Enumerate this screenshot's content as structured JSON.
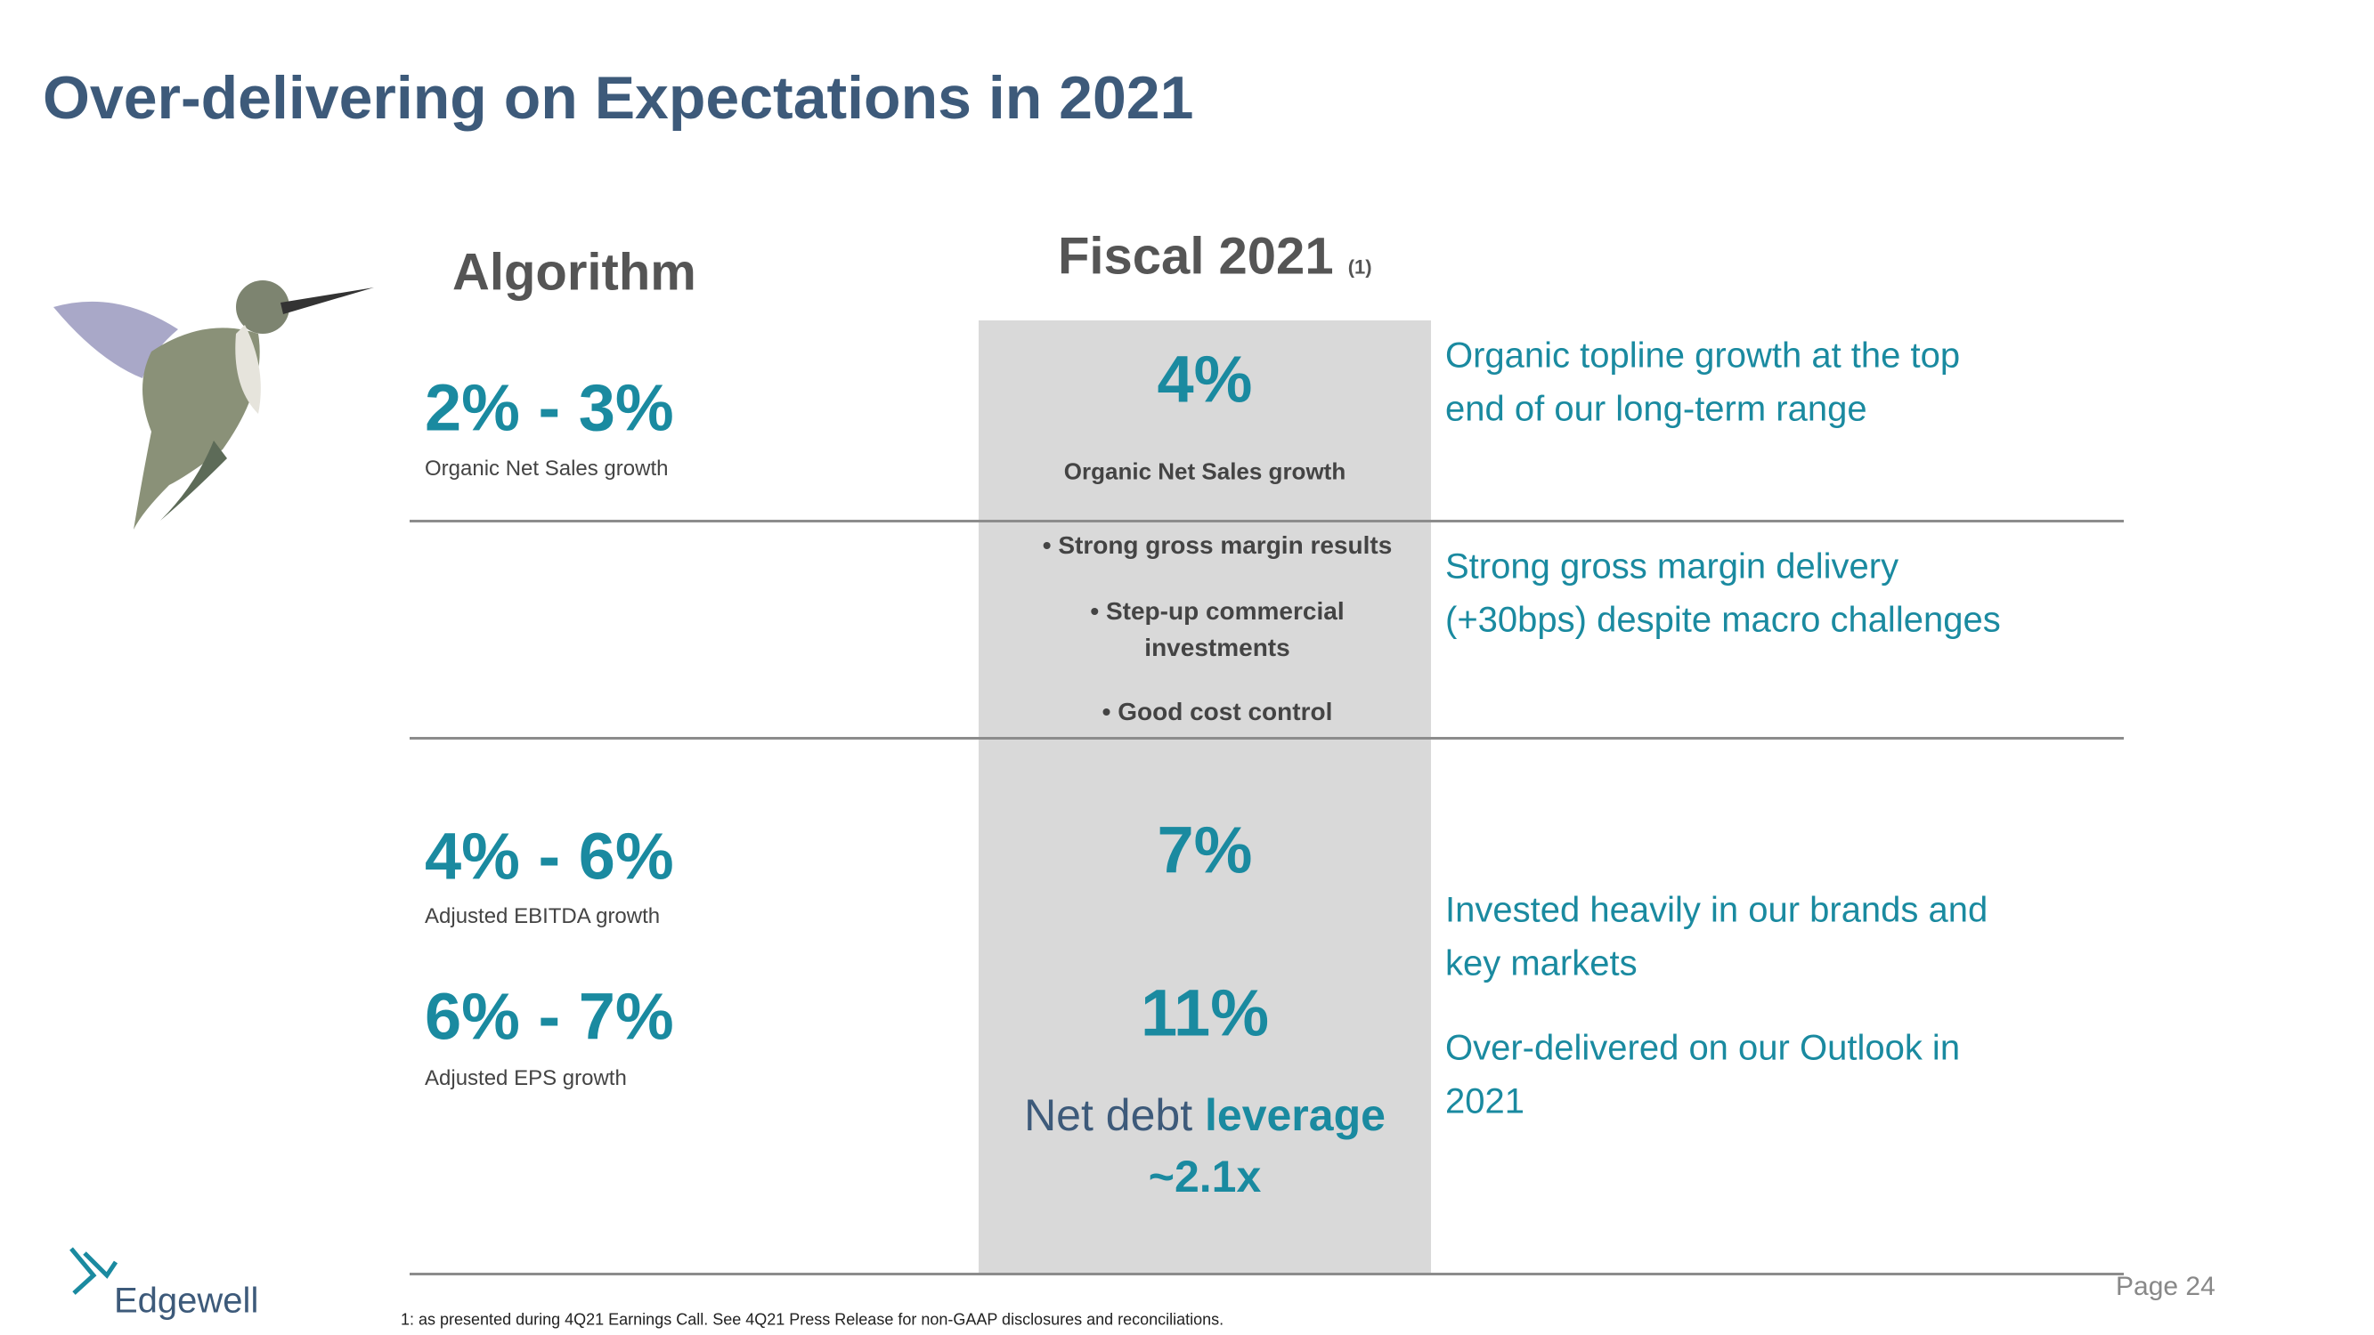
{
  "header": {
    "title": "Over-delivering on Expectations in 2021"
  },
  "columns": {
    "algorithm": "Algorithm",
    "fiscal": "Fiscal 2021",
    "fiscal_note": "(1)"
  },
  "rows": [
    {
      "algorithm": [
        {
          "value": "2% - 3%",
          "label": "Organic Net Sales growth"
        }
      ],
      "fiscal": {
        "value": "4%",
        "label": "Organic Net Sales growth"
      },
      "comment": [
        [
          "Organic topline growth at the top",
          "end of our long-term range"
        ]
      ]
    },
    {
      "fiscal_bullets": [
        [
          "Strong gross margin results"
        ],
        [
          "Step-up commercial",
          "investments"
        ],
        [
          "Good cost control"
        ]
      ],
      "comment": [
        [
          "Strong gross margin delivery",
          "(+30bps) despite macro challenges"
        ]
      ]
    },
    {
      "algorithm": [
        {
          "value": "4% - 6%",
          "label": "Adjusted EBITDA growth"
        },
        {
          "value": "6% - 7%",
          "label": "Adjusted EPS growth"
        }
      ],
      "fiscal_values": [
        "7%",
        "11%"
      ],
      "leverage": {
        "text": "Net debt",
        "emphasis": "leverage",
        "value": "~2.1x"
      },
      "comment": [
        [
          "Invested heavily in our brands and",
          "key markets"
        ],
        [
          "Over-delivered on our Outlook in",
          "2021"
        ]
      ]
    }
  ],
  "footer": {
    "logo": "Edgewell",
    "page": "Page 24",
    "footnote": "1: as presented during 4Q21 Earnings Call.  See 4Q21 Press Release for non-GAAP disclosures and reconciliations."
  }
}
